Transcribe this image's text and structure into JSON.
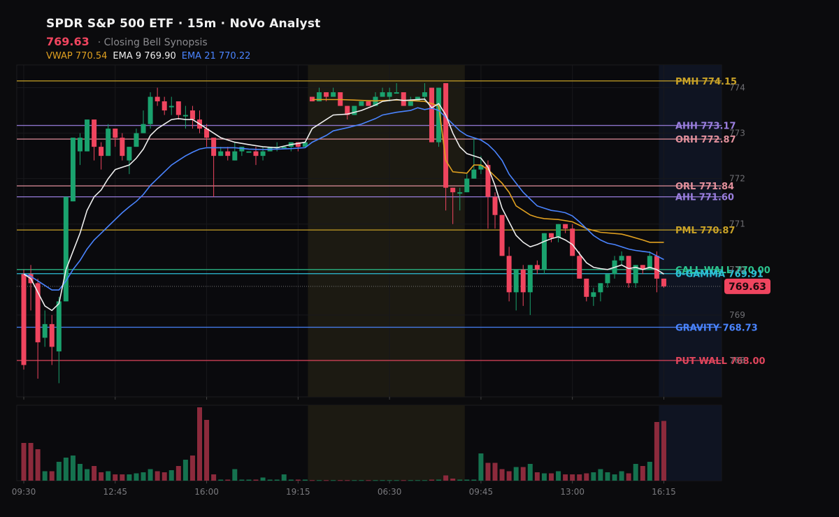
{
  "header": {
    "title": "SPDR S&P 500 ETF · 15m · NoVo Analyst",
    "price": "769.63",
    "subtitle": "· Closing Bell Synopsis",
    "vwap_label": "VWAP 770.54",
    "ema9_label": "EMA 9 769.90",
    "ema21_label": "EMA 21 770.22"
  },
  "price_tag": "769.63",
  "colors": {
    "up": "#1aa26e",
    "down": "#f0455f",
    "vwap": "#e0a020",
    "ema9": "#eeeeee",
    "ema21": "#4a84ff",
    "session_shade": "#1c1a12",
    "post_shade": "#0f1422"
  },
  "chart_data": {
    "type": "candlestick",
    "title": "SPDR S&P 500 ETF · 15m",
    "ylim": [
      767.2,
      774.5
    ],
    "y_ticks": [
      768,
      769,
      770,
      771,
      772,
      773,
      774
    ],
    "x_tick_labels": [
      {
        "i": 0,
        "label": "09:30"
      },
      {
        "i": 13,
        "label": "12:45"
      },
      {
        "i": 26,
        "label": "16:00"
      },
      {
        "i": 39,
        "label": "19:15"
      },
      {
        "i": 52,
        "label": "06:30"
      },
      {
        "i": 65,
        "label": "09:45"
      },
      {
        "i": 78,
        "label": "13:00"
      },
      {
        "i": 91,
        "label": "16:15"
      }
    ],
    "candles": [
      [
        0,
        769.9,
        767.9,
        770.0,
        767.8
      ],
      [
        1,
        769.9,
        769.7,
        770.1,
        769.1
      ],
      [
        2,
        769.7,
        768.4,
        769.8,
        767.6
      ],
      [
        3,
        768.5,
        768.8,
        769.1,
        768.3
      ],
      [
        4,
        768.8,
        768.3,
        769.0,
        767.9
      ],
      [
        5,
        768.2,
        769.3,
        769.4,
        767.5
      ],
      [
        6,
        769.3,
        771.6,
        771.6,
        769.3
      ],
      [
        7,
        771.5,
        772.9,
        772.9,
        771.5
      ],
      [
        8,
        772.6,
        772.9,
        773.0,
        772.3
      ],
      [
        9,
        772.6,
        773.3,
        773.3,
        772.6
      ],
      [
        10,
        773.3,
        772.7,
        773.3,
        772.4
      ],
      [
        11,
        772.7,
        772.5,
        772.8,
        772.2
      ],
      [
        12,
        772.5,
        773.1,
        773.2,
        772.5
      ],
      [
        13,
        773.1,
        772.9,
        773.1,
        772.7
      ],
      [
        14,
        772.9,
        772.5,
        773.0,
        772.4
      ],
      [
        15,
        772.4,
        772.7,
        772.7,
        772.1
      ],
      [
        16,
        772.7,
        773.0,
        773.1,
        772.7
      ],
      [
        17,
        773.0,
        773.2,
        773.5,
        773.0
      ],
      [
        18,
        773.2,
        773.8,
        773.9,
        773.1
      ],
      [
        19,
        773.8,
        773.7,
        774.0,
        773.6
      ],
      [
        20,
        773.7,
        773.5,
        773.8,
        773.4
      ],
      [
        21,
        773.6,
        773.6,
        773.8,
        773.4
      ],
      [
        22,
        773.7,
        773.4,
        773.7,
        773.3
      ],
      [
        23,
        773.4,
        773.4,
        773.6,
        773.1
      ],
      [
        24,
        773.5,
        773.3,
        773.6,
        773.1
      ],
      [
        25,
        773.3,
        773.1,
        773.5,
        773.0
      ],
      [
        26,
        773.1,
        772.9,
        773.2,
        772.7
      ],
      [
        27,
        772.9,
        772.5,
        772.9,
        771.6
      ],
      [
        28,
        772.5,
        772.6,
        772.7,
        772.5
      ],
      [
        29,
        772.6,
        772.5,
        772.7,
        772.4
      ],
      [
        30,
        772.4,
        772.6,
        772.8,
        772.4
      ],
      [
        31,
        772.6,
        772.7,
        772.7,
        772.5
      ],
      [
        32,
        772.6,
        772.6,
        772.6,
        772.6
      ],
      [
        33,
        772.6,
        772.5,
        772.7,
        772.3
      ],
      [
        34,
        772.5,
        772.6,
        772.7,
        772.4
      ],
      [
        35,
        772.6,
        772.7,
        772.7,
        772.6
      ],
      [
        36,
        772.7,
        772.7,
        772.8,
        772.6
      ],
      [
        37,
        772.7,
        772.7,
        772.7,
        772.7
      ],
      [
        38,
        772.7,
        772.8,
        772.8,
        772.6
      ],
      [
        39,
        772.8,
        772.7,
        772.8,
        772.6
      ],
      [
        40,
        772.7,
        772.8,
        772.8,
        772.7
      ],
      [
        41,
        773.8,
        773.7,
        773.8,
        773.7
      ],
      [
        42,
        773.7,
        773.9,
        774.0,
        773.7
      ],
      [
        43,
        773.9,
        773.8,
        773.9,
        773.7
      ],
      [
        44,
        773.8,
        773.9,
        774.0,
        773.8
      ],
      [
        45,
        773.9,
        773.6,
        773.9,
        773.6
      ],
      [
        46,
        773.6,
        773.4,
        773.6,
        773.3
      ],
      [
        47,
        773.4,
        773.6,
        773.6,
        773.4
      ],
      [
        48,
        773.6,
        773.7,
        773.7,
        773.6
      ],
      [
        49,
        773.7,
        773.6,
        773.7,
        773.6
      ],
      [
        50,
        773.6,
        773.8,
        773.9,
        773.6
      ],
      [
        51,
        773.8,
        773.9,
        774.0,
        773.8
      ],
      [
        52,
        773.8,
        773.9,
        774.0,
        773.7
      ],
      [
        53,
        773.9,
        773.9,
        774.1,
        773.9
      ],
      [
        54,
        773.9,
        773.6,
        773.9,
        773.6
      ],
      [
        55,
        773.6,
        773.7,
        773.8,
        773.6
      ],
      [
        56,
        773.7,
        773.8,
        773.8,
        773.7
      ],
      [
        57,
        773.8,
        773.9,
        774.1,
        773.7
      ],
      [
        58,
        774.0,
        772.8,
        774.0,
        772.8
      ],
      [
        59,
        772.8,
        774.0,
        774.0,
        772.7
      ],
      [
        60,
        774.1,
        771.8,
        774.1,
        771.3
      ],
      [
        61,
        771.8,
        771.7,
        771.8,
        771.0
      ],
      [
        62,
        771.7,
        771.7,
        771.8,
        771.3
      ],
      [
        63,
        771.7,
        772.0,
        772.1,
        771.7
      ],
      [
        64,
        772.0,
        772.2,
        772.9,
        772.0
      ],
      [
        65,
        772.2,
        772.3,
        772.5,
        772.1
      ],
      [
        66,
        772.3,
        771.6,
        772.4,
        770.9
      ],
      [
        67,
        771.6,
        771.2,
        771.7,
        770.9
      ],
      [
        68,
        771.2,
        770.3,
        771.2,
        770.3
      ],
      [
        69,
        770.3,
        769.5,
        770.5,
        769.3
      ],
      [
        70,
        769.5,
        770.0,
        770.0,
        769.1
      ],
      [
        71,
        770.0,
        769.5,
        770.1,
        769.2
      ],
      [
        72,
        769.5,
        770.1,
        770.1,
        769.0
      ],
      [
        73,
        770.1,
        770.0,
        770.2,
        769.9
      ],
      [
        74,
        770.0,
        770.8,
        770.8,
        769.9
      ],
      [
        75,
        770.8,
        770.7,
        770.8,
        770.6
      ],
      [
        76,
        770.7,
        771.0,
        771.0,
        770.6
      ],
      [
        77,
        771.0,
        770.9,
        771.0,
        770.8
      ],
      [
        78,
        770.9,
        770.3,
        771.0,
        770.3
      ],
      [
        79,
        770.3,
        769.8,
        770.4,
        769.8
      ],
      [
        80,
        769.8,
        769.4,
        769.8,
        769.3
      ],
      [
        81,
        769.4,
        769.5,
        769.6,
        769.2
      ],
      [
        82,
        769.5,
        769.7,
        769.7,
        769.3
      ],
      [
        83,
        769.7,
        769.9,
        769.9,
        769.6
      ],
      [
        84,
        769.9,
        770.2,
        770.3,
        769.8
      ],
      [
        85,
        770.2,
        770.3,
        770.4,
        770.1
      ],
      [
        86,
        770.3,
        769.7,
        770.3,
        769.6
      ],
      [
        87,
        769.7,
        770.1,
        770.1,
        769.6
      ],
      [
        88,
        770.1,
        770.0,
        770.1,
        769.9
      ],
      [
        89,
        770.0,
        770.3,
        770.4,
        770.0
      ],
      [
        90,
        770.3,
        769.8,
        770.4,
        769.5
      ],
      [
        91,
        769.8,
        769.63,
        769.8,
        769.6
      ]
    ],
    "volume": [
      0.36,
      0.36,
      0.3,
      0.09,
      0.09,
      0.18,
      0.22,
      0.24,
      0.16,
      0.11,
      0.14,
      0.08,
      0.09,
      0.06,
      0.06,
      0.06,
      0.07,
      0.08,
      0.11,
      0.09,
      0.08,
      0.1,
      0.14,
      0.2,
      0.24,
      0.7,
      0.58,
      0.06,
      0.01,
      0.01,
      0.11,
      0.01,
      0.01,
      0.01,
      0.03,
      0.01,
      0.01,
      0.06,
      0.01,
      0.01,
      0.01,
      0.005,
      0.005,
      0.005,
      0.005,
      0.005,
      0.005,
      0.005,
      0.005,
      0.005,
      0.005,
      0.005,
      0.005,
      0.005,
      0.005,
      0.005,
      0.005,
      0.005,
      0.01,
      0.01,
      0.05,
      0.02,
      0.01,
      0.01,
      0.01,
      0.26,
      0.17,
      0.17,
      0.11,
      0.09,
      0.13,
      0.13,
      0.16,
      0.08,
      0.07,
      0.07,
      0.09,
      0.06,
      0.06,
      0.06,
      0.07,
      0.08,
      0.11,
      0.08,
      0.06,
      0.09,
      0.07,
      0.16,
      0.14,
      0.18,
      0.56,
      0.57
    ],
    "vwap": [
      [
        41,
        773.74
      ],
      [
        45,
        773.74
      ],
      [
        50,
        773.71
      ],
      [
        53,
        773.73
      ],
      [
        57,
        773.7
      ],
      [
        59,
        773.6
      ],
      [
        60,
        772.4
      ],
      [
        61,
        772.15
      ],
      [
        63,
        772.12
      ],
      [
        64,
        772.3
      ],
      [
        65,
        772.3
      ],
      [
        66,
        772.2
      ],
      [
        67,
        772.05
      ],
      [
        68,
        771.9
      ],
      [
        69,
        771.7
      ],
      [
        70,
        771.4
      ],
      [
        71,
        771.3
      ],
      [
        72,
        771.2
      ],
      [
        73,
        771.15
      ],
      [
        74,
        771.12
      ],
      [
        76,
        771.1
      ],
      [
        78,
        771.05
      ],
      [
        80,
        770.9
      ],
      [
        82,
        770.82
      ],
      [
        85,
        770.78
      ],
      [
        86,
        770.74
      ],
      [
        88,
        770.65
      ],
      [
        89,
        770.6
      ],
      [
        91,
        770.6
      ]
    ],
    "ema9": [
      [
        0,
        769.9
      ],
      [
        1,
        769.8
      ],
      [
        2,
        769.5
      ],
      [
        3,
        769.2
      ],
      [
        4,
        769.1
      ],
      [
        5,
        769.25
      ],
      [
        6,
        770.0
      ],
      [
        7,
        770.4
      ],
      [
        8,
        770.8
      ],
      [
        9,
        771.3
      ],
      [
        10,
        771.6
      ],
      [
        11,
        771.75
      ],
      [
        12,
        772.0
      ],
      [
        13,
        772.2
      ],
      [
        14,
        772.25
      ],
      [
        15,
        772.3
      ],
      [
        16,
        772.45
      ],
      [
        17,
        772.65
      ],
      [
        18,
        772.95
      ],
      [
        19,
        773.1
      ],
      [
        20,
        773.2
      ],
      [
        21,
        773.3
      ],
      [
        22,
        773.32
      ],
      [
        23,
        773.3
      ],
      [
        24,
        773.3
      ],
      [
        25,
        773.2
      ],
      [
        26,
        773.1
      ],
      [
        27,
        773.0
      ],
      [
        28,
        772.9
      ],
      [
        29,
        772.85
      ],
      [
        30,
        772.8
      ],
      [
        32,
        772.75
      ],
      [
        34,
        772.7
      ],
      [
        36,
        772.68
      ],
      [
        38,
        772.75
      ],
      [
        40,
        772.8
      ],
      [
        41,
        773.1
      ],
      [
        43,
        773.3
      ],
      [
        44,
        773.4
      ],
      [
        46,
        773.42
      ],
      [
        48,
        773.5
      ],
      [
        50,
        773.62
      ],
      [
        51,
        773.7
      ],
      [
        53,
        773.74
      ],
      [
        54,
        773.72
      ],
      [
        57,
        773.75
      ],
      [
        58,
        773.56
      ],
      [
        59,
        773.65
      ],
      [
        60,
        773.4
      ],
      [
        61,
        773.0
      ],
      [
        62,
        772.7
      ],
      [
        63,
        772.55
      ],
      [
        64,
        772.5
      ],
      [
        65,
        772.45
      ],
      [
        66,
        772.25
      ],
      [
        67,
        771.85
      ],
      [
        68,
        771.35
      ],
      [
        69,
        771.05
      ],
      [
        70,
        770.75
      ],
      [
        71,
        770.6
      ],
      [
        72,
        770.5
      ],
      [
        73,
        770.55
      ],
      [
        74,
        770.62
      ],
      [
        75,
        770.68
      ],
      [
        76,
        770.72
      ],
      [
        77,
        770.65
      ],
      [
        78,
        770.55
      ],
      [
        79,
        770.35
      ],
      [
        80,
        770.15
      ],
      [
        81,
        770.05
      ],
      [
        82,
        770.02
      ],
      [
        83,
        770.0
      ],
      [
        84,
        770.05
      ],
      [
        85,
        770.1
      ],
      [
        86,
        770.02
      ],
      [
        87,
        770.05
      ],
      [
        88,
        770.0
      ],
      [
        89,
        770.05
      ],
      [
        90,
        770.0
      ],
      [
        91,
        769.9
      ]
    ],
    "ema21": [
      [
        0,
        769.9
      ],
      [
        1,
        769.85
      ],
      [
        2,
        769.75
      ],
      [
        3,
        769.65
      ],
      [
        4,
        769.55
      ],
      [
        5,
        769.55
      ],
      [
        6,
        769.75
      ],
      [
        7,
        770.0
      ],
      [
        8,
        770.2
      ],
      [
        9,
        770.45
      ],
      [
        10,
        770.65
      ],
      [
        11,
        770.8
      ],
      [
        12,
        770.95
      ],
      [
        13,
        771.1
      ],
      [
        14,
        771.25
      ],
      [
        15,
        771.38
      ],
      [
        16,
        771.5
      ],
      [
        17,
        771.65
      ],
      [
        18,
        771.85
      ],
      [
        19,
        772.0
      ],
      [
        20,
        772.15
      ],
      [
        21,
        772.3
      ],
      [
        22,
        772.4
      ],
      [
        23,
        772.5
      ],
      [
        24,
        772.58
      ],
      [
        25,
        772.65
      ],
      [
        26,
        772.68
      ],
      [
        27,
        772.68
      ],
      [
        28,
        772.68
      ],
      [
        30,
        772.68
      ],
      [
        32,
        772.65
      ],
      [
        34,
        772.64
      ],
      [
        36,
        772.65
      ],
      [
        38,
        772.66
      ],
      [
        40,
        772.68
      ],
      [
        41,
        772.8
      ],
      [
        43,
        772.95
      ],
      [
        44,
        773.05
      ],
      [
        46,
        773.12
      ],
      [
        48,
        773.2
      ],
      [
        50,
        773.32
      ],
      [
        51,
        773.4
      ],
      [
        53,
        773.46
      ],
      [
        55,
        773.5
      ],
      [
        56,
        773.56
      ],
      [
        57,
        773.52
      ],
      [
        58,
        773.55
      ],
      [
        59,
        773.5
      ],
      [
        60,
        773.35
      ],
      [
        61,
        773.2
      ],
      [
        62,
        773.05
      ],
      [
        63,
        772.95
      ],
      [
        64,
        772.9
      ],
      [
        65,
        772.85
      ],
      [
        66,
        772.75
      ],
      [
        67,
        772.6
      ],
      [
        68,
        772.4
      ],
      [
        69,
        772.1
      ],
      [
        70,
        771.9
      ],
      [
        71,
        771.7
      ],
      [
        72,
        771.55
      ],
      [
        73,
        771.4
      ],
      [
        74,
        771.35
      ],
      [
        75,
        771.3
      ],
      [
        76,
        771.28
      ],
      [
        77,
        771.25
      ],
      [
        78,
        771.18
      ],
      [
        79,
        771.05
      ],
      [
        80,
        770.9
      ],
      [
        81,
        770.75
      ],
      [
        82,
        770.65
      ],
      [
        83,
        770.58
      ],
      [
        84,
        770.55
      ],
      [
        85,
        770.5
      ],
      [
        86,
        770.45
      ],
      [
        87,
        770.42
      ],
      [
        88,
        770.4
      ],
      [
        89,
        770.38
      ],
      [
        90,
        770.3
      ],
      [
        91,
        770.22
      ]
    ],
    "levels": [
      {
        "label": "PMH 774.15",
        "value": 774.15,
        "color": "#c9a227"
      },
      {
        "label": "AHH 773.17",
        "value": 773.17,
        "color": "#9b7fe0"
      },
      {
        "label": "ORH 772.87",
        "value": 772.87,
        "color": "#e2909c"
      },
      {
        "label": "ORL 771.84",
        "value": 771.84,
        "color": "#e2909c"
      },
      {
        "label": "AHL 771.60",
        "value": 771.6,
        "color": "#9b7fe0"
      },
      {
        "label": "PML 770.87",
        "value": 770.87,
        "color": "#c9a227"
      },
      {
        "label": "CALL WALL 770.00",
        "value": 770.0,
        "color": "#2bc48e"
      },
      {
        "label": "0-GAMMA 769.91",
        "value": 769.91,
        "color": "#2cc0d8"
      },
      {
        "label": "GRAVITY 768.73",
        "value": 768.73,
        "color": "#4a84ff"
      },
      {
        "label": "PUT WALL 768.00",
        "value": 768.0,
        "color": "#e0455c"
      }
    ],
    "session_shade_range": [
      41,
      63
    ],
    "post_shade_range": [
      90.5,
      93
    ]
  }
}
